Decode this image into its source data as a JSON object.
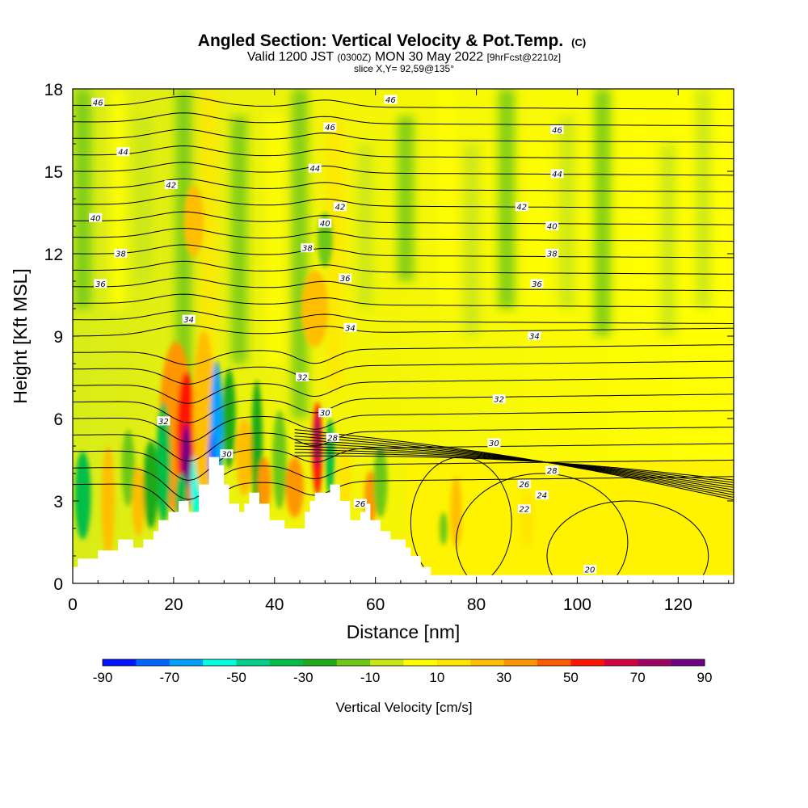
{
  "header": {
    "title": "Angled Section: Vertical Velocity & Pot.Temp.",
    "title_unit": "(C)",
    "valid_prefix": "Valid 1200 JST",
    "valid_z": "(0300Z)",
    "valid_date": "MON 30 May 2022",
    "forecast": "[9hrFcst@2210z]",
    "slice": "slice X,Y= 92,59@135°"
  },
  "chart_data": {
    "type": "heatmap",
    "title": "Angled Section: Vertical Velocity & Pot.Temp.",
    "xlabel": "Distance [nm]",
    "ylabel": "Height [Kft MSL]",
    "xlim": [
      0,
      131
    ],
    "ylim": [
      0,
      18
    ],
    "x_ticks": [
      0,
      20,
      40,
      60,
      80,
      100,
      120
    ],
    "y_ticks": [
      0,
      3,
      6,
      9,
      12,
      15,
      18
    ],
    "colorbar": {
      "label": "Vertical Velocity [cm/s]",
      "tick_labels": [
        -90,
        -70,
        -50,
        -30,
        -10,
        10,
        30,
        50,
        70,
        90
      ],
      "boundaries": [
        -90,
        -80,
        -70,
        -60,
        -50,
        -40,
        -30,
        -20,
        -10,
        0,
        10,
        20,
        30,
        40,
        50,
        60,
        70,
        80,
        90
      ],
      "colors": [
        "#0014ff",
        "#0064ff",
        "#00a0ff",
        "#00ffe0",
        "#00d08c",
        "#00be46",
        "#1eaa14",
        "#6ec814",
        "#c8e614",
        "#ffff00",
        "#ffe600",
        "#ffbe00",
        "#ff9600",
        "#ff5a00",
        "#ff1400",
        "#d2003c",
        "#a00064",
        "#6e0082"
      ]
    },
    "theta_contour_labels": [
      {
        "value": "46",
        "x": 5,
        "y": 17.5
      },
      {
        "value": "46",
        "x": 63,
        "y": 17.6
      },
      {
        "value": "46",
        "x": 51,
        "y": 16.6
      },
      {
        "value": "46",
        "x": 96,
        "y": 16.5
      },
      {
        "value": "44",
        "x": 10,
        "y": 15.7
      },
      {
        "value": "44",
        "x": 48,
        "y": 15.1
      },
      {
        "value": "44",
        "x": 96,
        "y": 14.9
      },
      {
        "value": "42",
        "x": 19.5,
        "y": 14.5
      },
      {
        "value": "42",
        "x": 53,
        "y": 13.7
      },
      {
        "value": "42",
        "x": 89,
        "y": 13.7
      },
      {
        "value": "40",
        "x": 4.5,
        "y": 13.3
      },
      {
        "value": "40",
        "x": 50,
        "y": 13.1
      },
      {
        "value": "40",
        "x": 95,
        "y": 13.0
      },
      {
        "value": "38",
        "x": 9.5,
        "y": 12.0
      },
      {
        "value": "38",
        "x": 46.5,
        "y": 12.2
      },
      {
        "value": "38",
        "x": 95,
        "y": 12.0
      },
      {
        "value": "36",
        "x": 5.5,
        "y": 10.9
      },
      {
        "value": "36",
        "x": 54,
        "y": 11.1
      },
      {
        "value": "36",
        "x": 92,
        "y": 10.9
      },
      {
        "value": "34",
        "x": 23,
        "y": 9.6
      },
      {
        "value": "34",
        "x": 55,
        "y": 9.3
      },
      {
        "value": "34",
        "x": 91.5,
        "y": 9.0
      },
      {
        "value": "32",
        "x": 18,
        "y": 5.9
      },
      {
        "value": "32",
        "x": 45.5,
        "y": 7.5
      },
      {
        "value": "32",
        "x": 84.5,
        "y": 6.7
      },
      {
        "value": "30",
        "x": 30.5,
        "y": 4.7
      },
      {
        "value": "30",
        "x": 50,
        "y": 6.2
      },
      {
        "value": "30",
        "x": 83.5,
        "y": 5.1
      },
      {
        "value": "28",
        "x": 51.5,
        "y": 5.3
      },
      {
        "value": "28",
        "x": 95,
        "y": 4.1
      },
      {
        "value": "26",
        "x": 89.5,
        "y": 3.6
      },
      {
        "value": "26",
        "x": 57,
        "y": 2.9
      },
      {
        "value": "24",
        "x": 93,
        "y": 3.2
      },
      {
        "value": "22",
        "x": 89.5,
        "y": 2.7
      },
      {
        "value": "20",
        "x": 102.5,
        "y": 0.5
      }
    ],
    "terrain_height_kft": [
      [
        0,
        0.6
      ],
      [
        1,
        0.6
      ],
      [
        1,
        0.9
      ],
      [
        5,
        0.9
      ],
      [
        5,
        1.2
      ],
      [
        9,
        1.2
      ],
      [
        9,
        1.6
      ],
      [
        12,
        1.6
      ],
      [
        12,
        1.3
      ],
      [
        14,
        1.3
      ],
      [
        14,
        1.6
      ],
      [
        16,
        1.6
      ],
      [
        16,
        1.9
      ],
      [
        17,
        1.9
      ],
      [
        17,
        2.3
      ],
      [
        19,
        2.3
      ],
      [
        19,
        2.6
      ],
      [
        21,
        2.6
      ],
      [
        21,
        3.0
      ],
      [
        23,
        3.0
      ],
      [
        23,
        2.6
      ],
      [
        25,
        2.6
      ],
      [
        25,
        3.6
      ],
      [
        27,
        3.6
      ],
      [
        27,
        4.6
      ],
      [
        29,
        4.6
      ],
      [
        29,
        4.3
      ],
      [
        30,
        4.3
      ],
      [
        30,
        3.6
      ],
      [
        31,
        3.6
      ],
      [
        31,
        2.9
      ],
      [
        33,
        2.9
      ],
      [
        33,
        2.6
      ],
      [
        34,
        2.6
      ],
      [
        34,
        2.9
      ],
      [
        35,
        2.9
      ],
      [
        35,
        3.3
      ],
      [
        37,
        3.3
      ],
      [
        37,
        2.9
      ],
      [
        39,
        2.9
      ],
      [
        39,
        2.3
      ],
      [
        42,
        2.3
      ],
      [
        42,
        2.0
      ],
      [
        46,
        2.0
      ],
      [
        46,
        2.6
      ],
      [
        47,
        2.6
      ],
      [
        47,
        3.0
      ],
      [
        48,
        3.0
      ],
      [
        48,
        3.3
      ],
      [
        51,
        3.3
      ],
      [
        51,
        3.6
      ],
      [
        53,
        3.6
      ],
      [
        53,
        3.0
      ],
      [
        55,
        3.0
      ],
      [
        55,
        2.3
      ],
      [
        57,
        2.3
      ],
      [
        57,
        2.6
      ],
      [
        58,
        2.6
      ],
      [
        58,
        2.9
      ],
      [
        59,
        2.9
      ],
      [
        59,
        2.3
      ],
      [
        61,
        2.3
      ],
      [
        61,
        1.9
      ],
      [
        63,
        1.9
      ],
      [
        63,
        1.6
      ],
      [
        66,
        1.6
      ],
      [
        66,
        1.3
      ],
      [
        67,
        1.3
      ],
      [
        67,
        1.0
      ],
      [
        69,
        1.0
      ],
      [
        69,
        0.6
      ],
      [
        71,
        0.6
      ],
      [
        71,
        0.3
      ],
      [
        131,
        0.3
      ]
    ]
  }
}
